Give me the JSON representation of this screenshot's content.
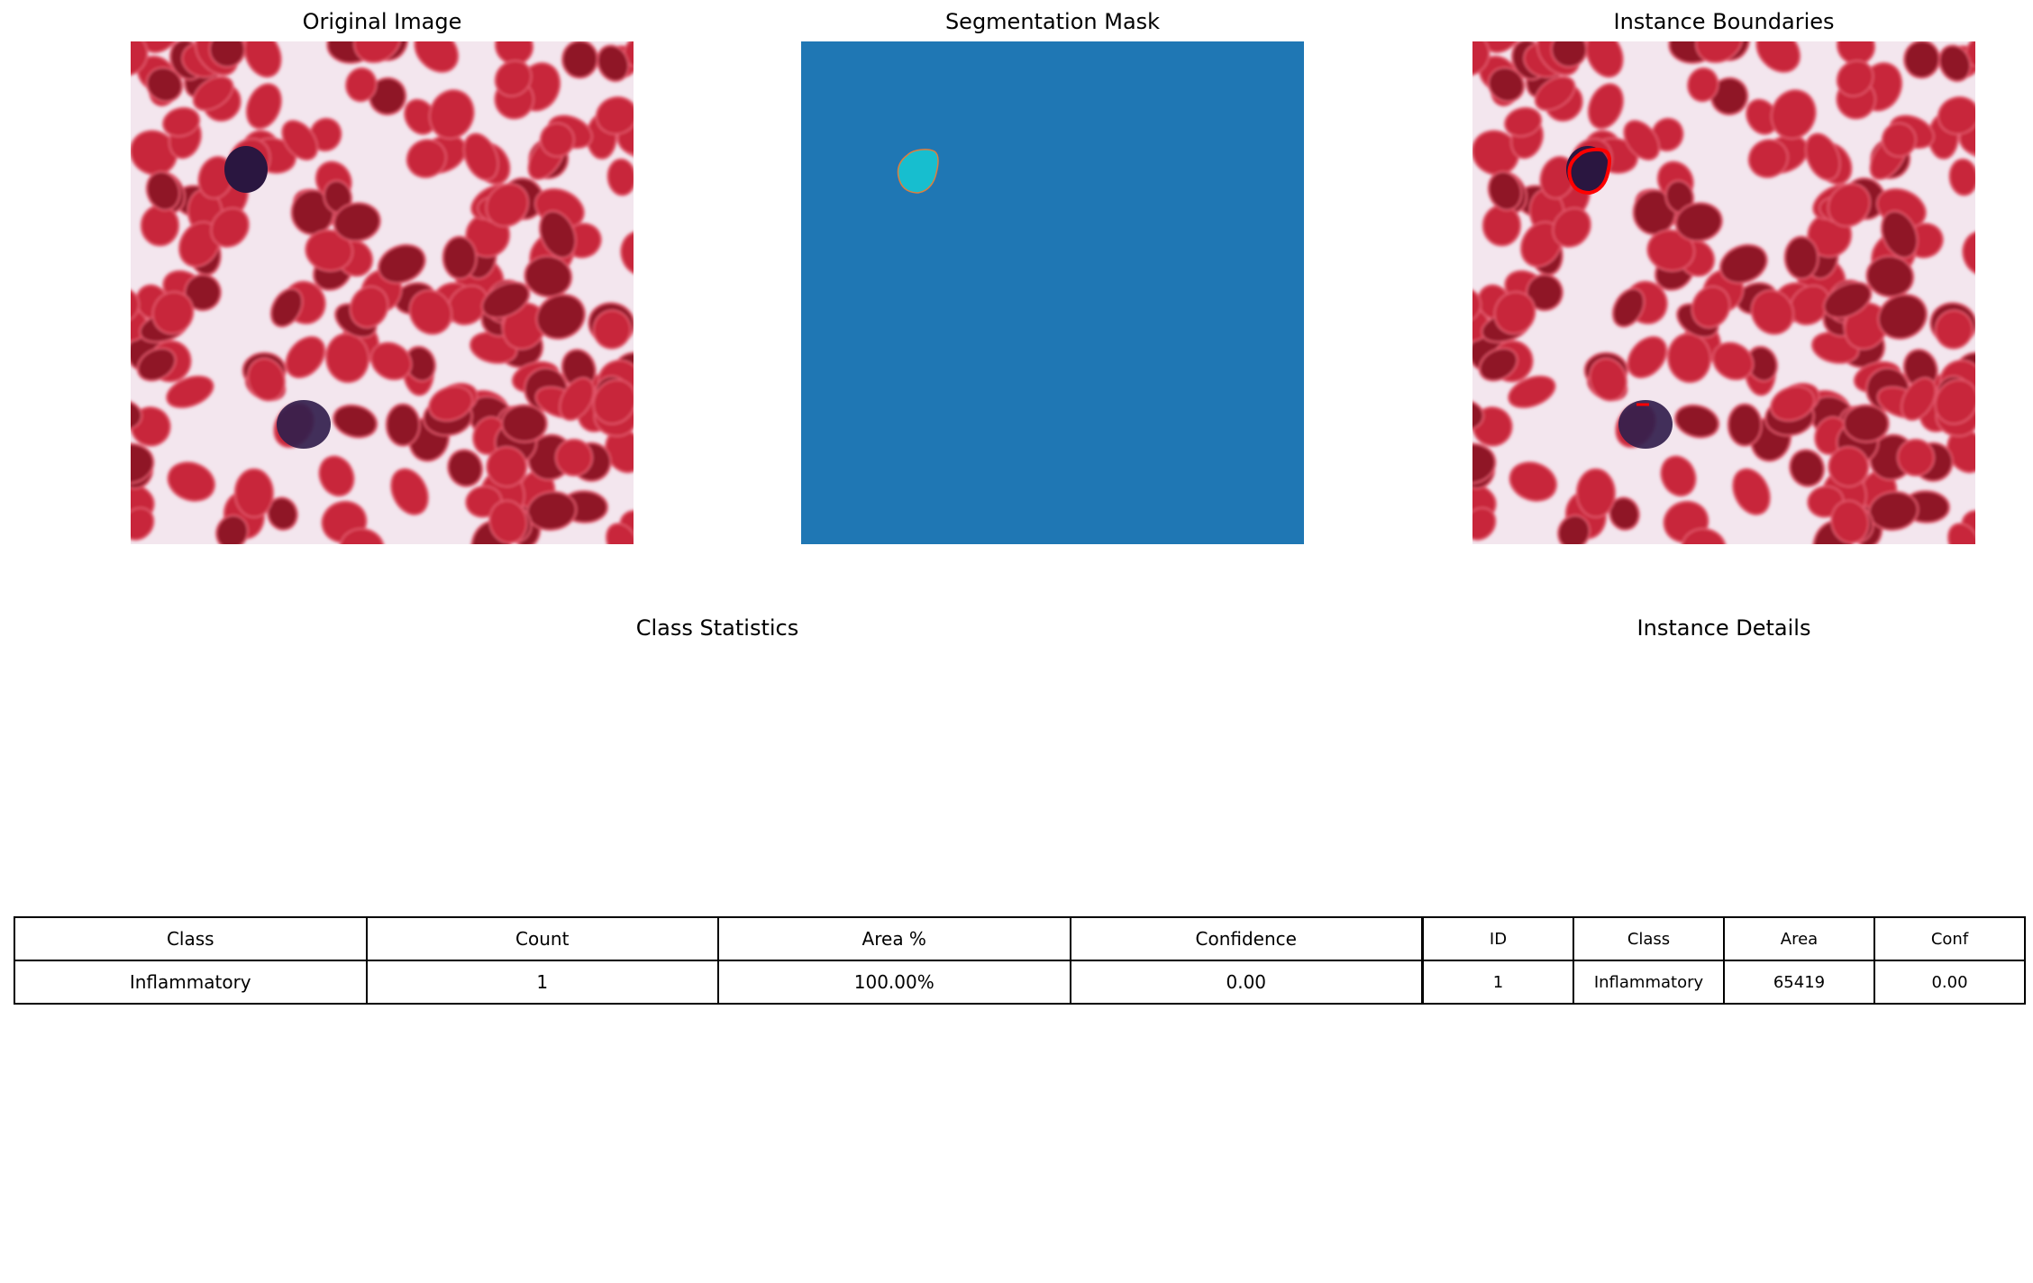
{
  "panels": {
    "original": {
      "title": "Original Image"
    },
    "mask": {
      "title": "Segmentation Mask",
      "background_color": "#1f77b4",
      "instance_color": "#17becf"
    },
    "boundaries": {
      "title": "Instance Boundaries",
      "boundary_color": "#ff0000"
    }
  },
  "class_statistics": {
    "title": "Class Statistics",
    "headers": [
      "Class",
      "Count",
      "Area %",
      "Confidence"
    ],
    "rows": [
      [
        "Inflammatory",
        "1",
        "100.00%",
        "0.00"
      ]
    ]
  },
  "instance_details": {
    "title": "Instance Details",
    "headers": [
      "ID",
      "Class",
      "Area",
      "Conf"
    ],
    "rows": [
      [
        "1",
        "Inflammatory",
        "65419",
        "0.00"
      ]
    ]
  },
  "palette": {
    "cell_red": "#c8253a",
    "cell_dark_red": "#8f1426",
    "nucleus": "#2a1640",
    "background_tissue": "#f3e6ee"
  }
}
